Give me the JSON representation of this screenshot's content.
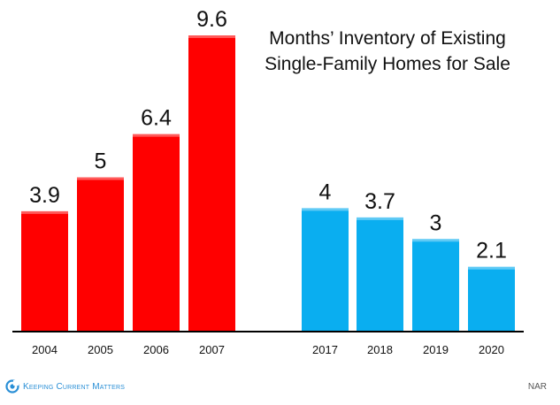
{
  "chart_data": {
    "type": "bar",
    "title_lines": [
      "Months’ Inventory of Existing",
      "Single-Family Homes for Sale"
    ],
    "categories": [
      "2004",
      "2005",
      "2006",
      "2007",
      "2017",
      "2018",
      "2019",
      "2020"
    ],
    "values": [
      3.9,
      5,
      6.4,
      9.6,
      4,
      3.7,
      3,
      2.1
    ],
    "value_labels": [
      "3.9",
      "5",
      "6.4",
      "9.6",
      "4",
      "3.7",
      "3",
      "2.1"
    ],
    "groups": [
      {
        "categories": [
          "2004",
          "2005",
          "2006",
          "2007"
        ],
        "color": "#ff0000"
      },
      {
        "categories": [
          "2017",
          "2018",
          "2019",
          "2020"
        ],
        "color": "#0aaef0"
      }
    ],
    "ylim": [
      0,
      9.6
    ],
    "grid": false,
    "xlabel": "",
    "ylabel": ""
  },
  "footer": {
    "brand": "Keeping Current Matters",
    "source": "NAR"
  },
  "colors": {
    "brand": "#2a8fd6"
  }
}
